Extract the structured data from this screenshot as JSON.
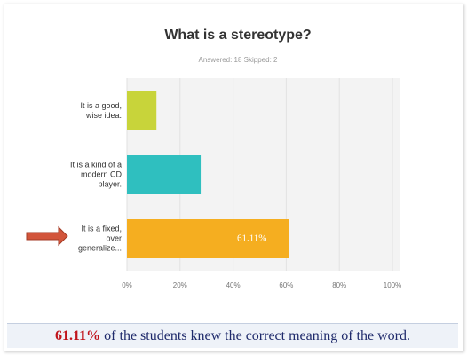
{
  "chart_data": {
    "type": "hbar",
    "title": "What is a stereotype?",
    "subtitle": "Answered: 18   Skipped: 2",
    "categories": [
      "It is a good, wise idea.",
      "It is a kind of a modern CD player.",
      "It is a fixed, over generalize..."
    ],
    "values": [
      11.11,
      27.78,
      61.11
    ],
    "value_labels": [
      null,
      null,
      "61.11%"
    ],
    "colors": [
      "#c8d43a",
      "#2fbfbf",
      "#f5ae20"
    ],
    "xlim": [
      0,
      100
    ],
    "xticks": [
      {
        "value": 0,
        "label": "0%"
      },
      {
        "value": 20,
        "label": "20%"
      },
      {
        "value": 40,
        "label": "40%"
      },
      {
        "value": 60,
        "label": "60%"
      },
      {
        "value": 80,
        "label": "80%"
      },
      {
        "value": 100,
        "label": "100%"
      }
    ],
    "grid": true
  },
  "caption": {
    "highlight": "61.11%",
    "text": "of the students knew the correct meaning of the word."
  }
}
